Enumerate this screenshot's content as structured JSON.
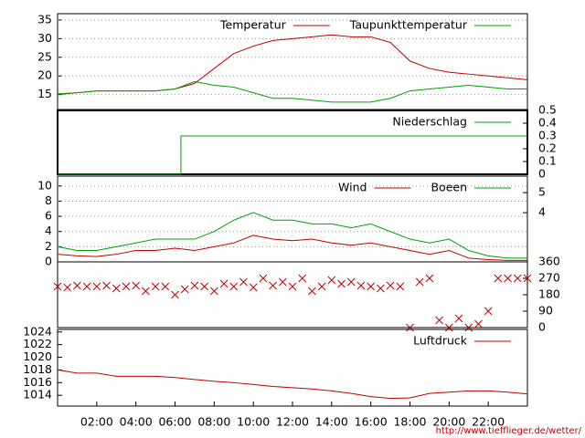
{
  "chart_data": [
    {
      "type": "line",
      "xlim": [
        0,
        24
      ],
      "ylim": [
        11,
        36.7
      ],
      "yticks": [
        15,
        20,
        25,
        30,
        35
      ],
      "grid": true,
      "x": [
        0,
        1,
        2,
        3,
        4,
        5,
        6,
        7,
        8,
        9,
        10,
        11,
        12,
        13,
        14,
        15,
        16,
        17,
        18,
        19,
        20,
        21,
        22,
        23,
        24
      ],
      "series": [
        {
          "name": "Temperatur",
          "color": "#c00000",
          "values": [
            15,
            15.5,
            16,
            16,
            16,
            16,
            16.5,
            18,
            22,
            26,
            28,
            29.5,
            30,
            30.5,
            31,
            30.5,
            30.5,
            29,
            24,
            22,
            21,
            20.5,
            20,
            19.5,
            19
          ]
        },
        {
          "name": "Taupunkttemperatur",
          "color": "#00a000",
          "values": [
            15.2,
            15.5,
            16,
            16,
            16,
            16,
            16.5,
            18.5,
            17.5,
            17,
            15.5,
            14,
            14,
            13.5,
            13,
            13,
            13,
            14,
            16,
            16.5,
            17,
            17.5,
            17,
            16.5,
            16.5
          ]
        }
      ]
    },
    {
      "type": "line",
      "xlim": [
        0,
        24
      ],
      "y2lim": [
        0,
        0.5
      ],
      "y2ticks": [
        0,
        0.1,
        0.2,
        0.3,
        0.4,
        0.5
      ],
      "grid": false,
      "x": [
        0,
        6.3,
        6.3,
        24
      ],
      "series": [
        {
          "name": "Niederschlag",
          "color": "#00a000",
          "axis": "y2",
          "values": [
            0,
            0,
            0.3,
            0.3
          ]
        }
      ]
    },
    {
      "type": "line",
      "xlim": [
        0,
        24
      ],
      "ylim": [
        0,
        11.3
      ],
      "yticks": [
        0,
        2,
        4,
        6,
        8,
        10
      ],
      "y2lim": [
        1.55,
        5.82
      ],
      "y2ticks": [
        4,
        5
      ],
      "grid": true,
      "x": [
        0,
        1,
        2,
        3,
        4,
        5,
        6,
        7,
        8,
        9,
        10,
        11,
        12,
        13,
        14,
        15,
        16,
        17,
        18,
        19,
        20,
        21,
        22,
        23,
        24
      ],
      "series": [
        {
          "name": "Wind",
          "color": "#c00000",
          "values": [
            1,
            0.8,
            0.7,
            1,
            1.5,
            1.5,
            1.8,
            1.5,
            2,
            2.5,
            3.5,
            3,
            2.8,
            3,
            2.5,
            2.2,
            2.5,
            2,
            1.5,
            1,
            1.5,
            0.5,
            0.3,
            0.2,
            0.2
          ]
        },
        {
          "name": "Boeen",
          "color": "#00a000",
          "values": [
            2,
            1.5,
            1.5,
            2,
            2.5,
            3,
            3,
            3,
            4,
            5.5,
            6.5,
            5.5,
            5.5,
            5,
            5,
            4.5,
            5,
            4,
            3,
            2.5,
            3,
            1.5,
            0.8,
            0.5,
            0.5
          ]
        }
      ]
    },
    {
      "type": "scatter",
      "xlim": [
        0,
        24
      ],
      "y2lim": [
        0,
        360
      ],
      "y2ticks": [
        0,
        90,
        180,
        270,
        360
      ],
      "grid": false,
      "x": [
        0,
        0.5,
        1,
        1.5,
        2,
        2.5,
        3,
        3.5,
        4,
        4.5,
        5,
        5.5,
        6,
        6.5,
        7,
        7.5,
        8,
        8.5,
        9,
        9.5,
        10,
        10.5,
        11,
        11.5,
        12,
        12.5,
        13,
        13.5,
        14,
        14.5,
        15,
        15.5,
        16,
        16.5,
        17,
        17.5,
        18,
        18.5,
        19,
        19.5,
        20,
        20.5,
        21,
        21.5,
        22,
        22.5,
        23,
        23.5,
        24
      ],
      "series": [
        {
          "color": "#c00000",
          "axis": "y2",
          "values": [
            225,
            220,
            230,
            225,
            225,
            230,
            215,
            225,
            230,
            200,
            225,
            225,
            180,
            210,
            230,
            225,
            200,
            240,
            225,
            250,
            220,
            270,
            230,
            250,
            225,
            270,
            200,
            225,
            260,
            240,
            250,
            230,
            225,
            215,
            230,
            225,
            0,
            250,
            270,
            40,
            0,
            50,
            0,
            20,
            90,
            270,
            270,
            270,
            270
          ]
        }
      ]
    },
    {
      "type": "line",
      "xlim": [
        0,
        24
      ],
      "ylim": [
        1012.3,
        1024.4
      ],
      "yticks": [
        1014,
        1016,
        1018,
        1020,
        1022,
        1024
      ],
      "grid": false,
      "xticks": [
        {
          "value": 2,
          "label": "02:00"
        },
        {
          "value": 4,
          "label": "04:00"
        },
        {
          "value": 6,
          "label": "06:00"
        },
        {
          "value": 8,
          "label": "08:00"
        },
        {
          "value": 10,
          "label": "10:00"
        },
        {
          "value": 12,
          "label": "12:00"
        },
        {
          "value": 14,
          "label": "14:00"
        },
        {
          "value": 16,
          "label": "16:00"
        },
        {
          "value": 18,
          "label": "18:00"
        },
        {
          "value": 20,
          "label": "20:00"
        },
        {
          "value": 22,
          "label": "22:00"
        }
      ],
      "x": [
        0,
        1,
        2,
        3,
        4,
        5,
        6,
        7,
        8,
        9,
        10,
        11,
        12,
        13,
        14,
        15,
        16,
        17,
        18,
        19,
        20,
        21,
        22,
        23,
        24
      ],
      "series": [
        {
          "name": "Luftdruck",
          "color": "#c00000",
          "values": [
            1018,
            1017.5,
            1017.5,
            1017,
            1017,
            1017,
            1016.8,
            1016.5,
            1016.2,
            1016,
            1015.7,
            1015.4,
            1015.2,
            1015,
            1014.7,
            1014.3,
            1013.8,
            1013.5,
            1013.6,
            1014.3,
            1014.5,
            1014.7,
            1014.7,
            1014.5,
            1014.2
          ]
        }
      ],
      "source": "http://www.tiefflieger.de/wetter/"
    }
  ]
}
